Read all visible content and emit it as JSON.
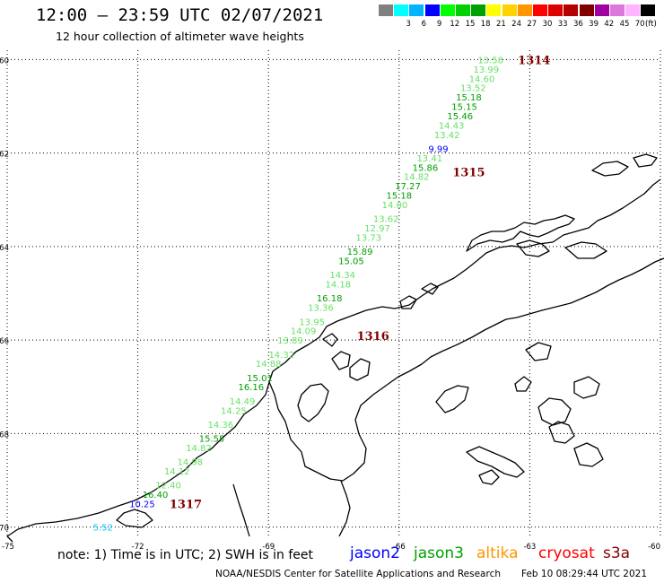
{
  "header": {
    "title": "12:00 — 23:59 UTC 02/07/2021",
    "subtitle": "12 hour collection of altimeter wave heights"
  },
  "legend": {
    "unit": "(ft)",
    "swatches": [
      {
        "color": "#808080",
        "label": ""
      },
      {
        "color": "#00ffff",
        "label": "3"
      },
      {
        "color": "#00b4ff",
        "label": "6"
      },
      {
        "color": "#0000ff",
        "label": "9"
      },
      {
        "color": "#00ff00",
        "label": "12"
      },
      {
        "color": "#00d000",
        "label": "15"
      },
      {
        "color": "#00a000",
        "label": "18"
      },
      {
        "color": "#ffff00",
        "label": "21"
      },
      {
        "color": "#ffd200",
        "label": "24"
      },
      {
        "color": "#ff9600",
        "label": "27"
      },
      {
        "color": "#ff0000",
        "label": "30"
      },
      {
        "color": "#dc0000",
        "label": "33"
      },
      {
        "color": "#b40000",
        "label": "36"
      },
      {
        "color": "#800000",
        "label": "39"
      },
      {
        "color": "#a000a0",
        "label": "42"
      },
      {
        "color": "#dc78dc",
        "label": "45"
      },
      {
        "color": "#ffb4ff",
        "label": "70"
      },
      {
        "color": "#000000",
        "label": ""
      }
    ]
  },
  "axes": {
    "lat_labels": [
      "-60",
      "-62",
      "-64",
      "-66",
      "-68",
      "-70"
    ],
    "lat_values": [
      -60,
      -62,
      -64,
      -66,
      -68,
      -70
    ],
    "lon_labels": [
      "-75",
      "-72",
      "-69",
      "-66",
      "-63",
      "-60"
    ],
    "lon_values": [
      -75,
      -72,
      -69,
      -66,
      -63,
      -60
    ]
  },
  "map": {
    "lon_range": [
      -75,
      -60
    ],
    "lat_range": [
      -70.2,
      -59.8
    ],
    "observations": [
      {
        "lon": -63.9,
        "lat": -60.0,
        "label": "13.58",
        "color": "#66e066"
      },
      {
        "lon": -64.0,
        "lat": -60.2,
        "label": "13.99",
        "color": "#66e066"
      },
      {
        "lon": -64.1,
        "lat": -60.4,
        "label": "14.60",
        "color": "#66e066"
      },
      {
        "lon": -64.3,
        "lat": -60.6,
        "label": "13.52",
        "color": "#66e066"
      },
      {
        "lon": -64.4,
        "lat": -60.8,
        "label": "15.18",
        "color": "#00a000"
      },
      {
        "lon": -64.5,
        "lat": -61.0,
        "label": "15.15",
        "color": "#00a000"
      },
      {
        "lon": -64.6,
        "lat": -61.2,
        "label": "15.46",
        "color": "#00a000"
      },
      {
        "lon": -64.8,
        "lat": -61.4,
        "label": "14.43",
        "color": "#66e066"
      },
      {
        "lon": -64.9,
        "lat": -61.6,
        "label": "13.42",
        "color": "#66e066"
      },
      {
        "lon": -65.1,
        "lat": -61.9,
        "label": "9.99",
        "color": "#0000ff"
      },
      {
        "lon": -65.3,
        "lat": -62.1,
        "label": "13.41",
        "color": "#66e066"
      },
      {
        "lon": -65.4,
        "lat": -62.3,
        "label": "15.86",
        "color": "#00a000"
      },
      {
        "lon": -65.6,
        "lat": -62.5,
        "label": "14.82",
        "color": "#66e066"
      },
      {
        "lon": -65.8,
        "lat": -62.7,
        "label": "17.27",
        "color": "#00a000"
      },
      {
        "lon": -66.0,
        "lat": -62.9,
        "label": "15.18",
        "color": "#00a000"
      },
      {
        "lon": -66.1,
        "lat": -63.1,
        "label": "14.00",
        "color": "#66e066"
      },
      {
        "lon": -66.3,
        "lat": -63.4,
        "label": "13.62",
        "color": "#66e066"
      },
      {
        "lon": -66.5,
        "lat": -63.6,
        "label": "12.97",
        "color": "#66e066"
      },
      {
        "lon": -66.7,
        "lat": -63.8,
        "label": "13.73",
        "color": "#66e066"
      },
      {
        "lon": -66.9,
        "lat": -64.1,
        "label": "15.89",
        "color": "#00a000"
      },
      {
        "lon": -67.1,
        "lat": -64.3,
        "label": "15.05",
        "color": "#00a000"
      },
      {
        "lon": -67.3,
        "lat": -64.6,
        "label": "14.34",
        "color": "#66e066"
      },
      {
        "lon": -67.4,
        "lat": -64.8,
        "label": "14.18",
        "color": "#66e066"
      },
      {
        "lon": -67.6,
        "lat": -65.1,
        "label": "16.18",
        "color": "#00a000"
      },
      {
        "lon": -67.8,
        "lat": -65.3,
        "label": "13.36",
        "color": "#66e066"
      },
      {
        "lon": -68.0,
        "lat": -65.6,
        "label": "13.95",
        "color": "#66e066"
      },
      {
        "lon": -68.2,
        "lat": -65.8,
        "label": "14.09",
        "color": "#66e066"
      },
      {
        "lon": -68.5,
        "lat": -66.0,
        "label": "13.89",
        "color": "#66e066"
      },
      {
        "lon": -68.7,
        "lat": -66.3,
        "label": "14.32",
        "color": "#66e066"
      },
      {
        "lon": -69.0,
        "lat": -66.5,
        "label": "14.88",
        "color": "#66e066"
      },
      {
        "lon": -69.2,
        "lat": -66.8,
        "label": "15.01",
        "color": "#00a000"
      },
      {
        "lon": -69.4,
        "lat": -67.0,
        "label": "16.16",
        "color": "#00a000"
      },
      {
        "lon": -69.6,
        "lat": -67.3,
        "label": "14.49",
        "color": "#66e066"
      },
      {
        "lon": -69.8,
        "lat": -67.5,
        "label": "14.25",
        "color": "#66e066"
      },
      {
        "lon": -70.1,
        "lat": -67.8,
        "label": "14.36",
        "color": "#66e066"
      },
      {
        "lon": -70.3,
        "lat": -68.1,
        "label": "15.55",
        "color": "#00a000"
      },
      {
        "lon": -70.6,
        "lat": -68.3,
        "label": "14.82",
        "color": "#66e066"
      },
      {
        "lon": -70.8,
        "lat": -68.6,
        "label": "14.98",
        "color": "#66e066"
      },
      {
        "lon": -71.1,
        "lat": -68.8,
        "label": "14.12",
        "color": "#66e066"
      },
      {
        "lon": -71.3,
        "lat": -69.1,
        "label": "12.40",
        "color": "#66e066"
      },
      {
        "lon": -71.6,
        "lat": -69.3,
        "label": "16.40",
        "color": "#00a000"
      },
      {
        "lon": -71.9,
        "lat": -69.5,
        "label": "10.25",
        "color": "#0000ff"
      },
      {
        "lon": -72.8,
        "lat": -70.0,
        "label": "5.52",
        "color": "#00ccff"
      }
    ],
    "orbit_labels": [
      {
        "lon": -62.9,
        "lat": -60.0,
        "label": "1314",
        "color": "#800000"
      },
      {
        "lon": -64.4,
        "lat": -62.4,
        "label": "1315",
        "color": "#800000"
      },
      {
        "lon": -66.6,
        "lat": -65.9,
        "label": "1316",
        "color": "#800000"
      },
      {
        "lon": -70.9,
        "lat": -69.5,
        "label": "1317",
        "color": "#800000"
      }
    ]
  },
  "footer": {
    "note": "note: 1) Time is in UTC; 2) SWH is in feet",
    "satellites": [
      {
        "name": "jason2",
        "color": "#0000ff"
      },
      {
        "name": "jason3",
        "color": "#00a000"
      },
      {
        "name": "altika",
        "color": "#ff9600"
      },
      {
        "name": "cryosat",
        "color": "#ff0000"
      },
      {
        "name": "s3a",
        "color": "#800000"
      }
    ],
    "credit": "NOAA/NESDIS Center for Satellite Applications and Research",
    "timestamp": "Feb 10 08:29:44 UTC 2021"
  }
}
